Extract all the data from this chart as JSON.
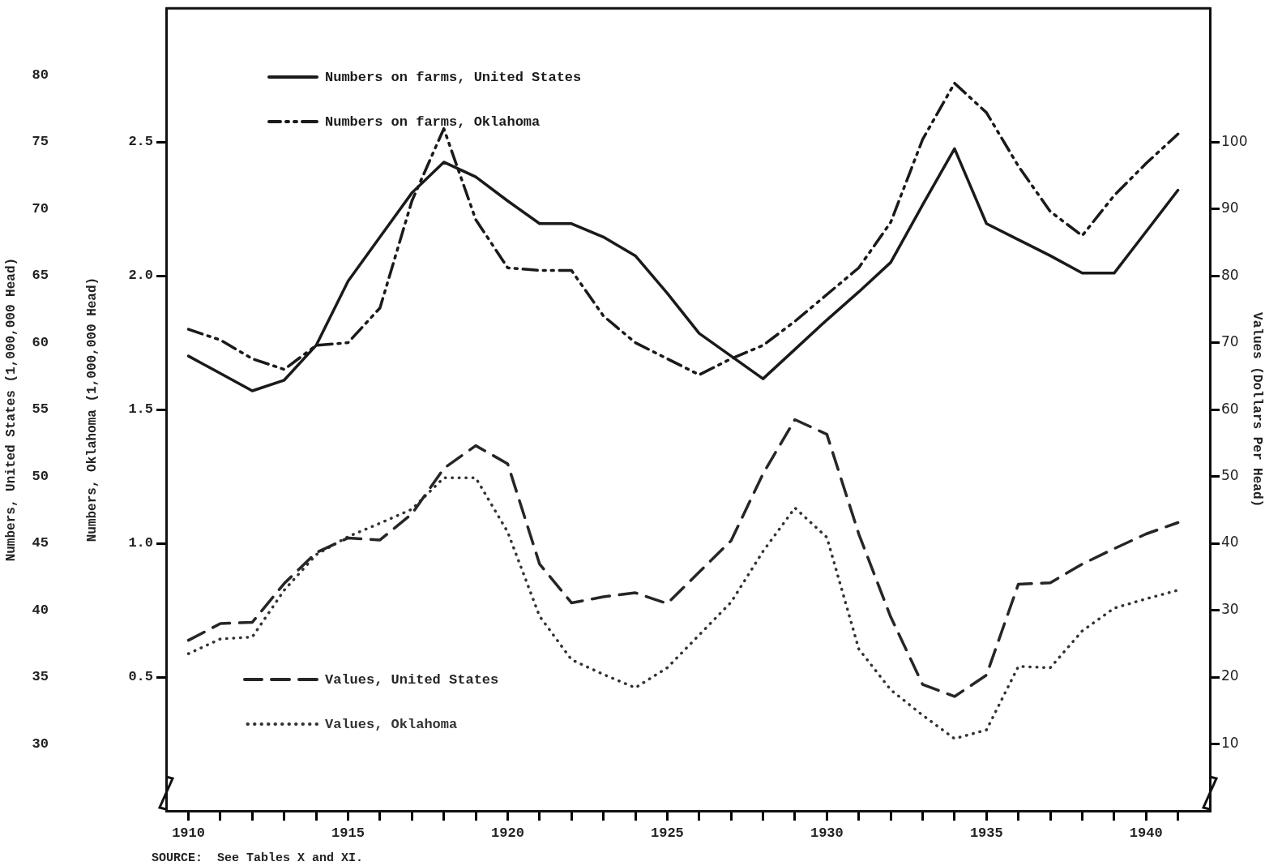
{
  "chart_data": {
    "type": "line",
    "x": [
      1910,
      1911,
      1912,
      1913,
      1914,
      1915,
      1916,
      1917,
      1918,
      1919,
      1920,
      1921,
      1922,
      1923,
      1924,
      1925,
      1926,
      1927,
      1928,
      1929,
      1930,
      1931,
      1932,
      1933,
      1934,
      1935,
      1936,
      1937,
      1938,
      1939,
      1940,
      1941
    ],
    "series": [
      {
        "name": "Numbers on farms, United States",
        "color": "#1a1a1a",
        "line_style": "solid",
        "axis": "y",
        "values": [
          59.0,
          57.7,
          56.4,
          57.2,
          59.8,
          64.6,
          67.9,
          71.2,
          73.5,
          72.4,
          70.6,
          68.9,
          68.9,
          67.9,
          66.5,
          63.7,
          60.7,
          59.0,
          57.3,
          59.5,
          61.7,
          63.8,
          66.0,
          70.3,
          74.5,
          68.9,
          67.7,
          66.5,
          65.2,
          65.2,
          68.3,
          71.4
        ]
      },
      {
        "name": "Numbers on farms, Oklahoma",
        "color": "#1a1a1a",
        "line_style": "dashdot",
        "axis": "y3",
        "values": [
          1.8,
          1.76,
          1.69,
          1.65,
          1.74,
          1.75,
          1.88,
          2.28,
          2.55,
          2.21,
          2.03,
          2.02,
          2.02,
          1.85,
          1.75,
          1.69,
          1.63,
          1.69,
          1.74,
          1.83,
          1.93,
          2.03,
          2.2,
          2.51,
          2.72,
          2.61,
          2.41,
          2.24,
          2.15,
          2.3,
          2.42,
          2.53
        ]
      },
      {
        "name": "Values, United States",
        "color": "#262626",
        "line_style": "dashed",
        "axis": "y2",
        "values": [
          25.5,
          28.0,
          28.2,
          34.0,
          38.6,
          40.8,
          40.5,
          44.4,
          51.2,
          54.6,
          51.9,
          36.9,
          31.1,
          32.0,
          32.6,
          31.0,
          35.7,
          40.4,
          50.4,
          58.5,
          56.3,
          41.4,
          29.0,
          18.9,
          17.1,
          20.3,
          33.9,
          34.1,
          36.9,
          39.2,
          41.4,
          43.1
        ]
      },
      {
        "name": "Values, Oklahoma",
        "color": "#333333",
        "line_style": "dotted",
        "axis": "y2",
        "values": [
          23.5,
          25.7,
          26.0,
          33.0,
          38.3,
          41.0,
          43.0,
          45.1,
          49.8,
          49.8,
          41.7,
          29.1,
          22.6,
          20.4,
          18.4,
          21.4,
          26.3,
          31.2,
          38.8,
          45.3,
          40.9,
          24.2,
          18.1,
          14.3,
          10.8,
          12.1,
          21.6,
          21.4,
          26.9,
          30.3,
          31.7,
          33.0
        ]
      }
    ],
    "xlim": [
      1909.3,
      1942
    ],
    "xticks": [
      1910,
      {
        "value": 1911,
        "label": null
      },
      {
        "value": 1912,
        "label": null
      },
      {
        "value": 1913,
        "label": null
      },
      {
        "value": 1914,
        "label": null
      },
      1915,
      {
        "value": 1916,
        "label": null
      },
      {
        "value": 1917,
        "label": null
      },
      {
        "value": 1918,
        "label": null
      },
      {
        "value": 1919,
        "label": null
      },
      1920,
      {
        "value": 1921,
        "label": null
      },
      {
        "value": 1922,
        "label": null
      },
      {
        "value": 1923,
        "label": null
      },
      {
        "value": 1924,
        "label": null
      },
      1925,
      {
        "value": 1926,
        "label": null
      },
      {
        "value": 1927,
        "label": null
      },
      {
        "value": 1928,
        "label": null
      },
      {
        "value": 1929,
        "label": null
      },
      1930,
      {
        "value": 1931,
        "label": null
      },
      {
        "value": 1932,
        "label": null
      },
      {
        "value": 1933,
        "label": null
      },
      {
        "value": 1934,
        "label": null
      },
      1935,
      {
        "value": 1936,
        "label": null
      },
      {
        "value": 1937,
        "label": null
      },
      {
        "value": 1938,
        "label": null
      },
      {
        "value": 1939,
        "label": null
      },
      1940,
      {
        "value": 1941,
        "label": null
      }
    ],
    "ylabel": "Numbers, United States (1,000,000 Head)",
    "ylim": [
      25,
      85
    ],
    "yticks": [
      30,
      35,
      40,
      45,
      50,
      55,
      60,
      65,
      70,
      75,
      80
    ],
    "y3label": "Numbers, Oklahoma (1,000,000 Head)",
    "y3lim": [
      0,
      3
    ],
    "y3ticks": [
      0.5,
      {
        "value": 1,
        "label": "1.0"
      },
      1.5,
      {
        "value": 2,
        "label": "2.0"
      },
      2.5
    ],
    "y2label": "Values (Dollars Per Head)",
    "y2lim": [
      0,
      120
    ],
    "y2ticks": [
      10,
      20,
      30,
      40,
      50,
      60,
      70,
      80,
      90,
      100
    ],
    "legend": "left",
    "annotations": [
      "SOURCE:  See Tables X and XI."
    ]
  }
}
